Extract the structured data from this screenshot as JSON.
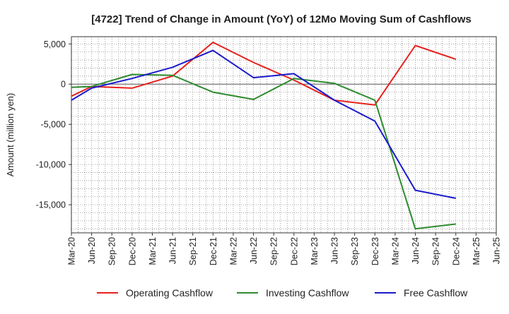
{
  "chart_data": {
    "type": "line",
    "title": "[4722]  Trend of Change in Amount (YoY) of 12Mo Moving Sum of Cashflows",
    "xlabel": "",
    "ylabel": "Amount (million yen)",
    "ylim": [
      -18500,
      5900
    ],
    "yticks": [
      5000,
      0,
      -5000,
      -10000,
      -15000
    ],
    "ytick_labels": [
      "5,000",
      "0",
      "-5,000",
      "-10,000",
      "-15,000"
    ],
    "categories": [
      "Mar-20",
      "Jun-20",
      "Sep-20",
      "Dec-20",
      "Mar-21",
      "Jun-21",
      "Sep-21",
      "Dec-21",
      "Mar-22",
      "Jun-22",
      "Sep-22",
      "Dec-22",
      "Mar-23",
      "Jun-23",
      "Sep-23",
      "Dec-23",
      "Mar-24",
      "Jun-24",
      "Sep-24",
      "Dec-24",
      "Mar-25",
      "Jun-25"
    ],
    "grid": true,
    "legend_position": "bottom",
    "series": [
      {
        "name": "Operating Cashflow",
        "color": "#e8201c",
        "values": [
          -1500,
          -300,
          null,
          -500,
          null,
          1000,
          null,
          5200,
          null,
          2700,
          null,
          500,
          null,
          -2000,
          null,
          -2600,
          null,
          4800,
          null,
          3100,
          null,
          null
        ]
      },
      {
        "name": "Investing Cashflow",
        "color": "#2e8b2e",
        "values": [
          -400,
          -300,
          null,
          1200,
          null,
          1100,
          null,
          -1000,
          null,
          -1900,
          null,
          700,
          null,
          100,
          null,
          -2000,
          null,
          -18000,
          null,
          -17400,
          null,
          null
        ]
      },
      {
        "name": "Free Cashflow",
        "color": "#1a1acd",
        "values": [
          -2000,
          -500,
          null,
          700,
          null,
          2100,
          null,
          4200,
          null,
          800,
          null,
          1300,
          null,
          -2000,
          null,
          -4600,
          null,
          -13200,
          null,
          -14200,
          null,
          null
        ]
      }
    ]
  }
}
